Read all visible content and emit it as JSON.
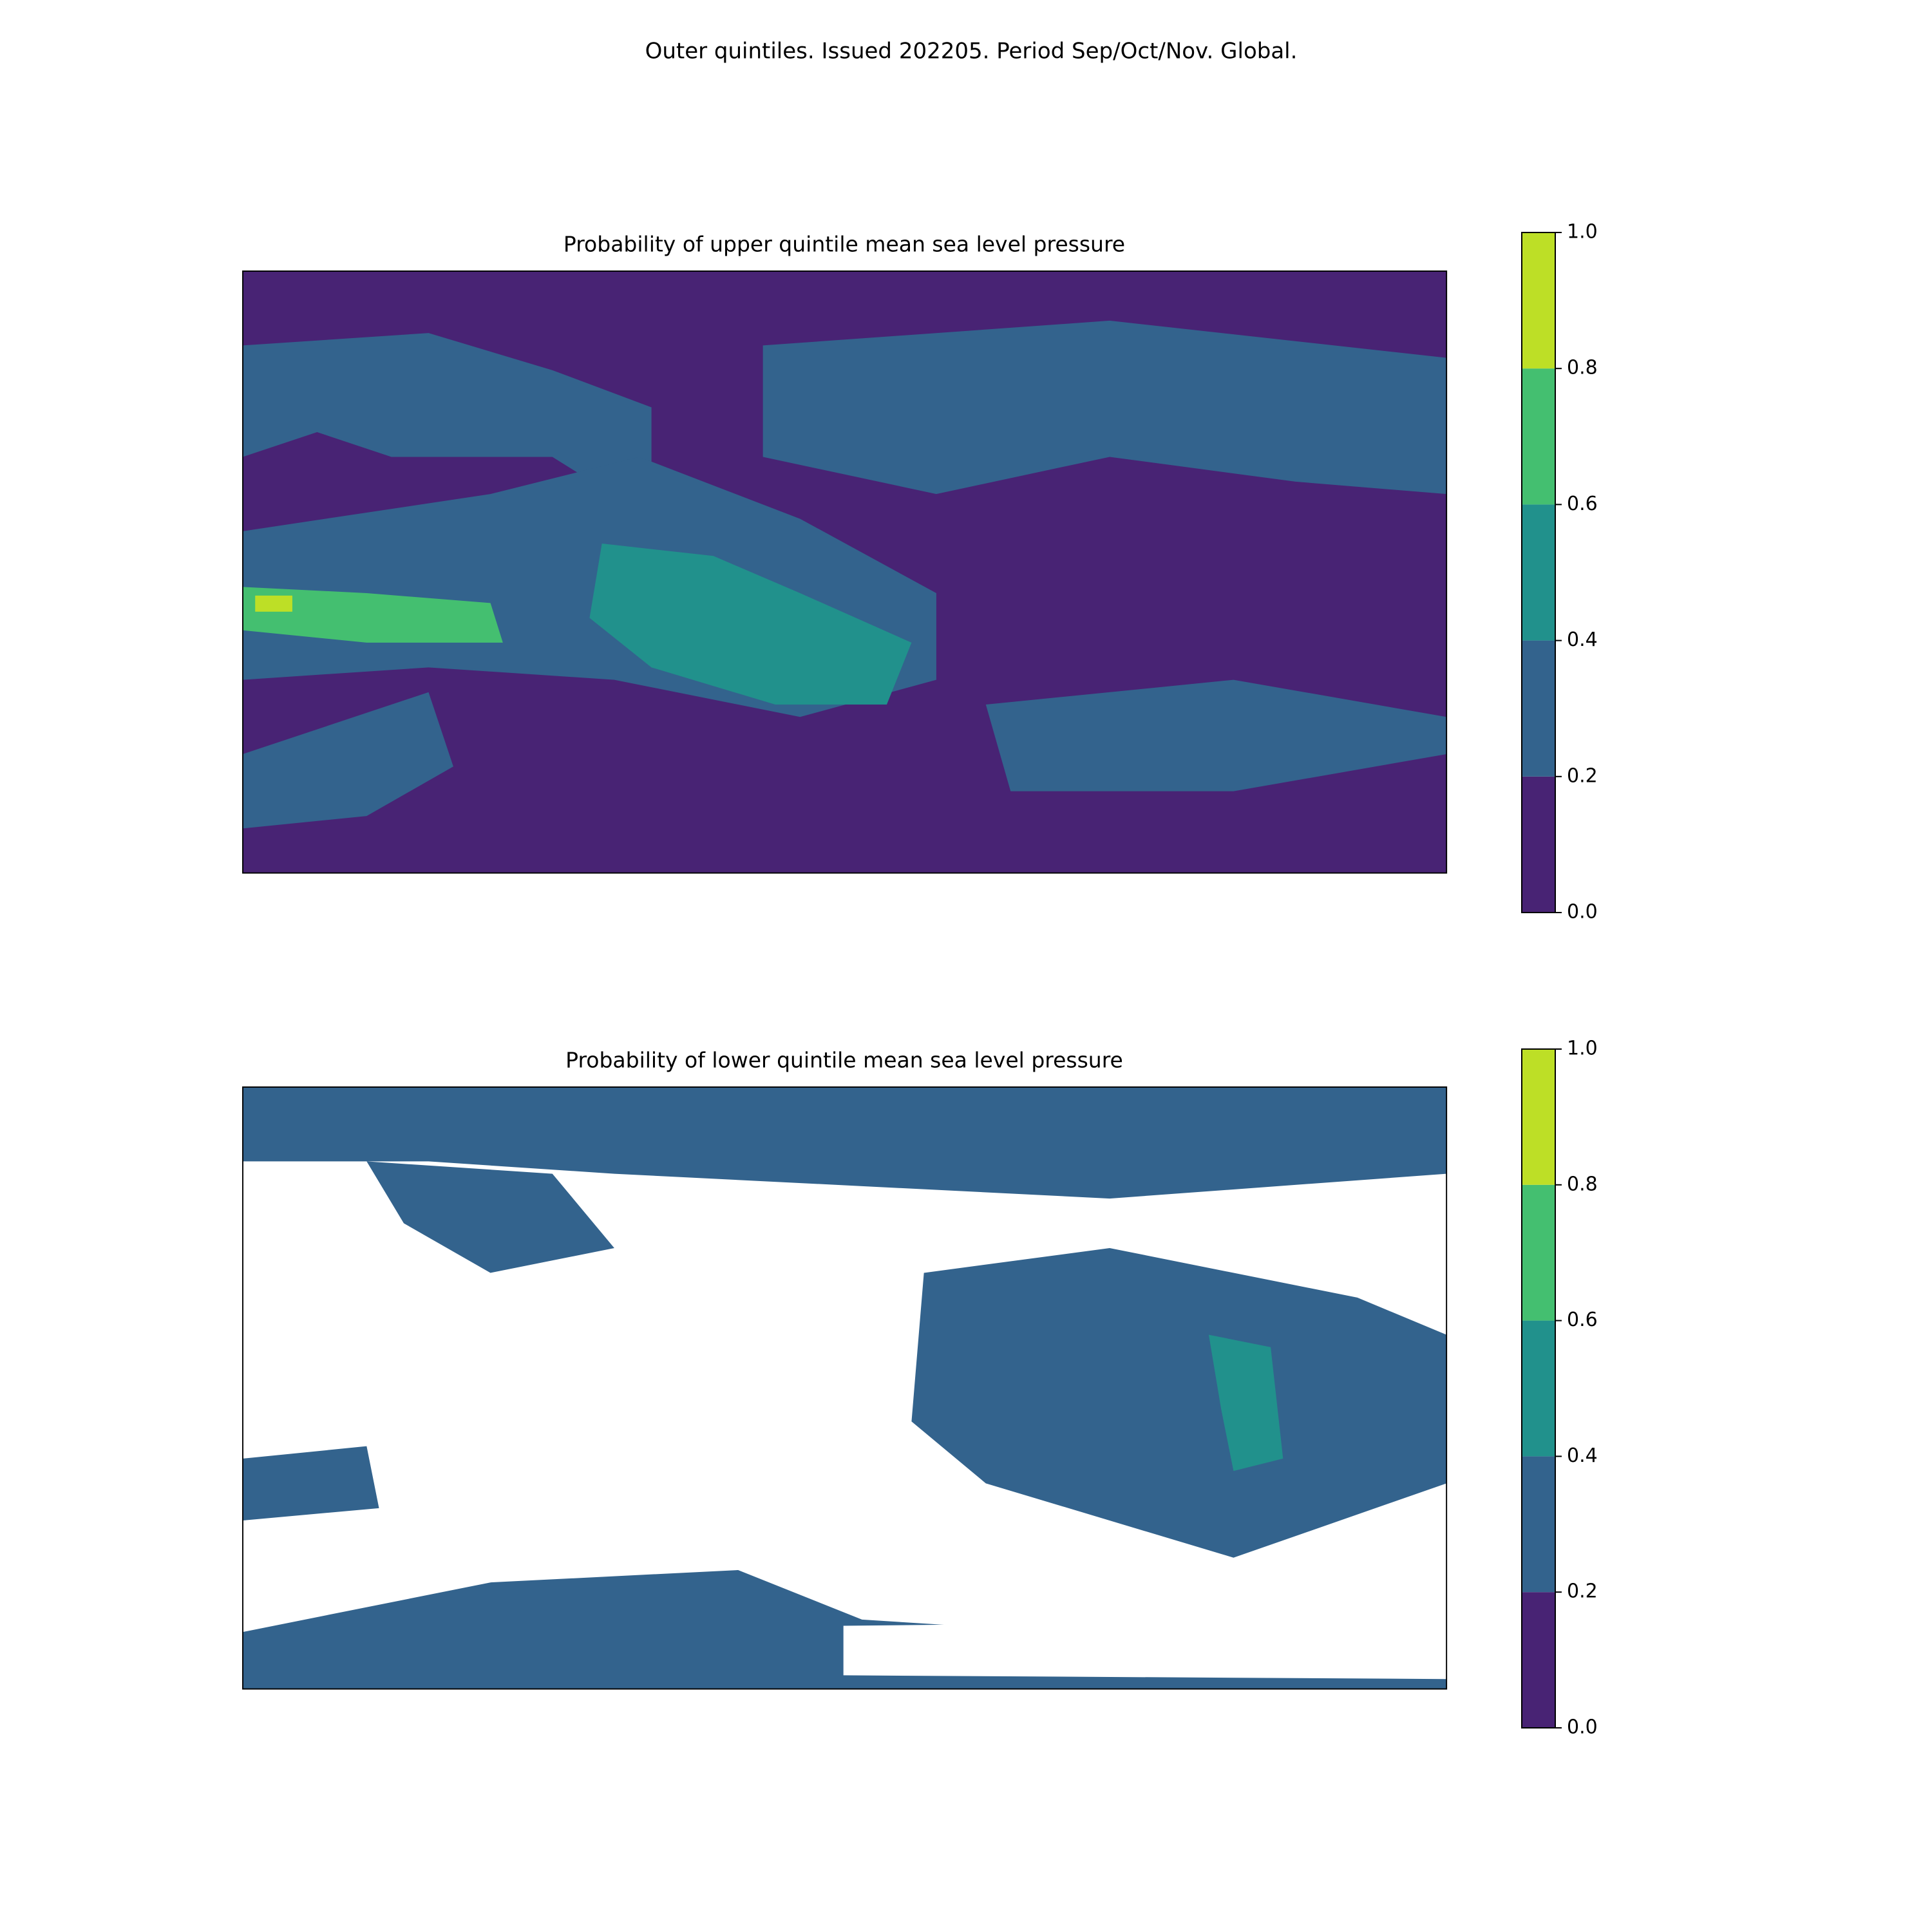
{
  "title": "Outer quintiles. Issued 202205. Period Sep/Oct/Nov. Global.",
  "panels": [
    {
      "title": "Probability of upper quintile mean sea level pressure",
      "colorbar": {
        "colors": [
          "#482374",
          "#33638d",
          "#21918c",
          "#44bf70",
          "#bddf26"
        ],
        "ticks": [
          {
            "value": 0,
            "label": "0.0"
          },
          0.2,
          0.4,
          0.6,
          0.8,
          {
            "value": 1,
            "label": "1.0"
          }
        ]
      }
    },
    {
      "title": "Probability of lower quintile mean sea level pressure",
      "colorbar": {
        "colors": [
          "#482374",
          "#33638d",
          "#21918c",
          "#44bf70",
          "#bddf26"
        ],
        "ticks": [
          {
            "value": 0,
            "label": "0.0"
          },
          0.2,
          0.4,
          0.6,
          0.8,
          {
            "value": 1,
            "label": "1.0"
          }
        ]
      }
    }
  ]
}
